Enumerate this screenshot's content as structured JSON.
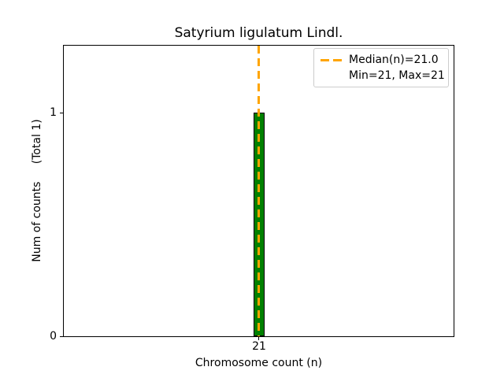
{
  "figure": {
    "title": "Satyrium ligulatum Lindl.",
    "x_axis": {
      "label": "Chromosome count (n)",
      "ticks": [
        "21"
      ]
    },
    "y_axis": {
      "label": "Num of counts     (Total 1)",
      "ticks": [
        "0",
        "1"
      ]
    },
    "legend": {
      "median_label": "Median(n)=21.0",
      "minmax_label": "Min=21, Max=21"
    },
    "colors": {
      "bar_fill": "#008000",
      "bar_edge": "#000000",
      "median_line": "#FFA500",
      "legend_border": "#cccccc",
      "text": "#000000"
    }
  },
  "chart_data": {
    "type": "bar",
    "title": "Satyrium ligulatum Lindl.",
    "xlabel": "Chromosome count (n)",
    "ylabel": "Num of counts     (Total 1)",
    "categories": [
      "21"
    ],
    "values": [
      1
    ],
    "total_counts": 1,
    "median_n": 21.0,
    "min_n": 21,
    "max_n": 21,
    "yticks": [
      0,
      1
    ],
    "ylim": [
      0,
      1.3
    ],
    "legend_entries": [
      "Median(n)=21.0",
      "Min=21, Max=21"
    ],
    "legend_position": "upper right",
    "grid": false,
    "bar_fill_color": "#008000",
    "bar_edge_color": "#000000",
    "median_line_color": "#FFA500",
    "median_line_style": "dashed"
  }
}
